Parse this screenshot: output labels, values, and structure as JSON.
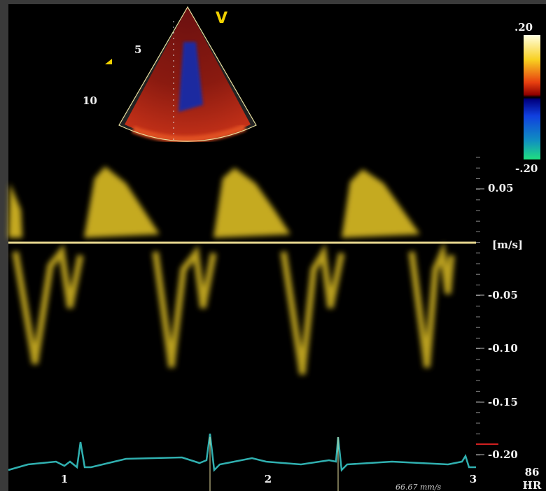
{
  "sector": {
    "marker": "V",
    "depth_labels": [
      "5",
      "10"
    ]
  },
  "color_scale": {
    "top": ".20",
    "bottom": "-.20"
  },
  "velocity_axis": {
    "labels": [
      "0.05",
      "-0.05",
      "-0.10",
      "-0.15",
      "-0.20"
    ],
    "unit": "[m/s]"
  },
  "ecg": {
    "beat_labels": [
      "1",
      "2",
      "3"
    ],
    "sweep_speed": "66.67 mm/s"
  },
  "heart_rate": {
    "value": "86",
    "label": "HR"
  }
}
